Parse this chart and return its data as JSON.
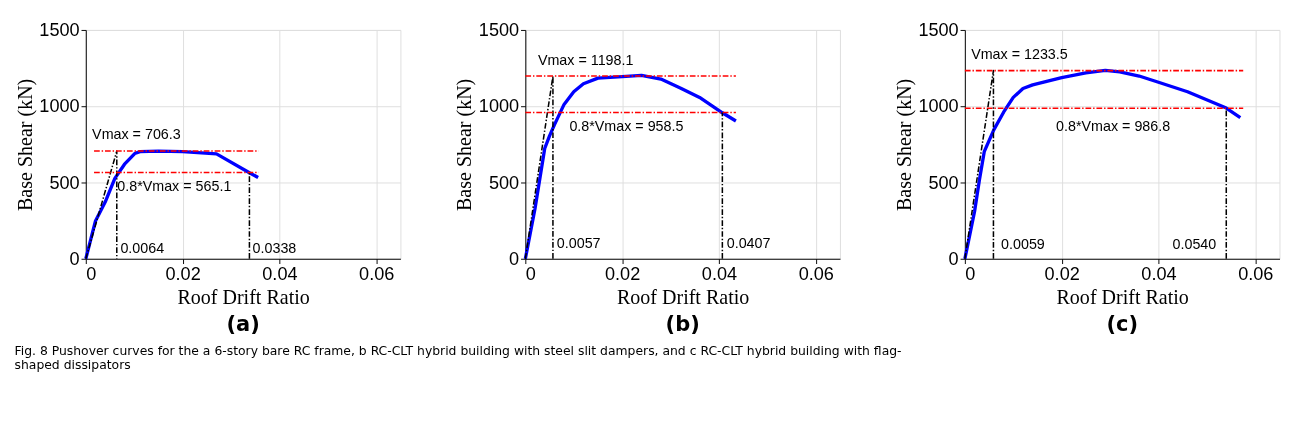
{
  "chart_data": [
    {
      "type": "line",
      "title": "(a)",
      "xlabel": "Roof Drift Ratio",
      "ylabel": "Base Shear (kN)",
      "xlim": [
        0,
        0.065
      ],
      "xticks": [
        0,
        0.02,
        0.04,
        0.06
      ],
      "ylim": [
        0,
        1500
      ],
      "yticks": [
        0,
        500,
        1000,
        1500
      ],
      "grid": true,
      "marker": "none",
      "series": [
        {
          "color": "#0000ff",
          "line_style": "solid",
          "x": [
            0,
            0.002,
            0.004,
            0.006,
            0.008,
            0.0101,
            0.0112,
            0.015,
            0.02,
            0.027,
            0.0338,
            0.0356
          ],
          "values": [
            0,
            248,
            372,
            527,
            620,
            690,
            702,
            706,
            702,
            688,
            564,
            533
          ]
        },
        {
          "type": "line",
          "color": "#000000",
          "line_style": "dashed",
          "x": [
            0,
            0.0064,
            0.0064
          ],
          "values": [
            0,
            706.3,
            0
          ]
        },
        {
          "type": "line",
          "color": "#000000",
          "line_style": "dashed",
          "x": [
            0.0338,
            0.0338
          ],
          "values": [
            0,
            565.1
          ]
        },
        {
          "type": "line",
          "color": "#ff0000",
          "line_style": "dashed",
          "x": [
            0.0017,
            0.0357
          ],
          "values": [
            706.3,
            706.3
          ]
        },
        {
          "type": "line",
          "color": "#ff0000",
          "line_style": "dashed",
          "x": [
            0.0017,
            0.0357
          ],
          "values": [
            565.1,
            565.1
          ]
        }
      ],
      "annotations": [
        "Vmax = 706.3",
        "0.8*Vmax = 565.1",
        "0.0064",
        "0.0338",
        "Fig. 8  Pushover curves for the a 6-story bare RC frame, b RC-CLT hybrid building with steel slit dampers, and c RC-CLT hybrid building with flag-shaped dissipators"
      ]
    },
    {
      "type": "line",
      "title": "(b)",
      "xlabel": "Roof Drift Ratio",
      "ylabel": "Base Shear (kN)",
      "xlim": [
        0,
        0.065
      ],
      "xticks": [
        0,
        0.02,
        0.04,
        0.06
      ],
      "ylim": [
        0,
        1500
      ],
      "yticks": [
        0,
        500,
        1000,
        1500
      ],
      "grid": true,
      "marker": "none",
      "series": [
        {
          "color": "#0000ff",
          "line_style": "solid",
          "x": [
            0,
            0.002,
            0.004,
            0.005,
            0.006,
            0.008,
            0.01,
            0.012,
            0.015,
            0.02,
            0.024,
            0.028,
            0.032,
            0.036,
            0.0407,
            0.0435
          ],
          "values": [
            0,
            330,
            723,
            806,
            878,
            1012,
            1095,
            1147,
            1184,
            1194,
            1202,
            1178,
            1120,
            1058,
            957,
            903
          ]
        },
        {
          "type": "line",
          "color": "#000000",
          "line_style": "dashed",
          "x": [
            0,
            0.0057,
            0.0057
          ],
          "values": [
            0,
            1198.1,
            0
          ]
        },
        {
          "type": "line",
          "color": "#000000",
          "line_style": "dashed",
          "x": [
            0.0407,
            0.0407
          ],
          "values": [
            0,
            958.5
          ]
        },
        {
          "type": "line",
          "color": "#ff0000",
          "line_style": "dashed",
          "x": [
            0,
            0.0435
          ],
          "values": [
            1198.1,
            1198.1
          ]
        },
        {
          "type": "line",
          "color": "#ff0000",
          "line_style": "dashed",
          "x": [
            0,
            0.0435
          ],
          "values": [
            958.5,
            958.5
          ]
        }
      ],
      "annotations": [
        "Vmax = 1198.1",
        "0.8*Vmax = 958.5",
        "0.0057",
        "0.0407"
      ]
    },
    {
      "type": "line",
      "title": "(c)",
      "xlabel": "Roof Drift Ratio",
      "ylabel": "Base Shear (kN)",
      "xlim": [
        0,
        0.065
      ],
      "xticks": [
        0,
        0.02,
        0.04,
        0.06
      ],
      "ylim": [
        0,
        1500
      ],
      "yticks": [
        0,
        500,
        1000,
        1500
      ],
      "grid": true,
      "marker": "none",
      "series": [
        {
          "color": "#0000ff",
          "line_style": "solid",
          "x": [
            0,
            0.002,
            0.003,
            0.004,
            0.006,
            0.008,
            0.01,
            0.012,
            0.014,
            0.02,
            0.025,
            0.029,
            0.032,
            0.036,
            0.04,
            0.046,
            0.054,
            0.0569
          ],
          "values": [
            0,
            310,
            516,
            702,
            847,
            961,
            1058,
            1116,
            1140,
            1188,
            1219,
            1235,
            1225,
            1198,
            1157,
            1095,
            988,
            926
          ]
        },
        {
          "type": "line",
          "color": "#000000",
          "line_style": "dashed",
          "x": [
            0,
            0.0059,
            0.0059
          ],
          "values": [
            0,
            1233.5,
            0
          ]
        },
        {
          "type": "line",
          "color": "#000000",
          "line_style": "dashed",
          "x": [
            0.054,
            0.054
          ],
          "values": [
            0,
            986.8
          ]
        },
        {
          "type": "line",
          "color": "#ff0000",
          "line_style": "dashed",
          "x": [
            0,
            0.0575
          ],
          "values": [
            1233.5,
            1233.5
          ]
        },
        {
          "type": "line",
          "color": "#ff0000",
          "line_style": "dashed",
          "x": [
            0,
            0.0575
          ],
          "values": [
            986.8,
            986.8
          ]
        }
      ],
      "annotations": [
        "Vmax = 1233.5",
        "0.8*Vmax = 986.8",
        "0.0059",
        "0.0540"
      ]
    }
  ]
}
